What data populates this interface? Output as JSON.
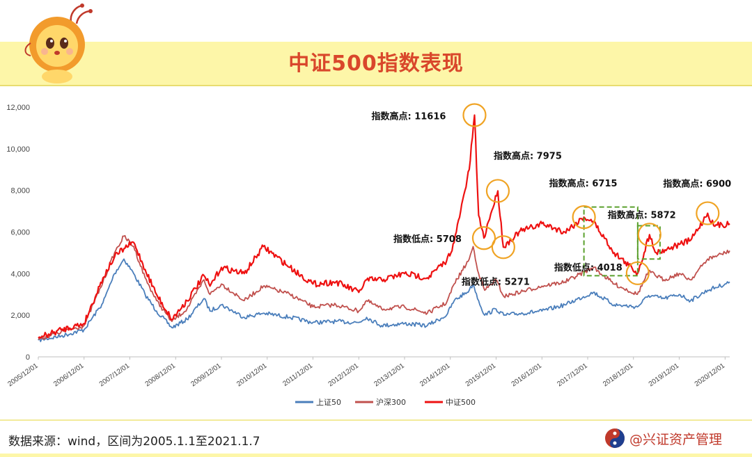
{
  "page": {
    "title": "中证500指数表现",
    "source_note": "数据来源：wind，区间为2005.1.1至2021.1.7",
    "brand": "@兴证资产管理"
  },
  "colors": {
    "header_band": "#fdf6a8",
    "title": "#d9472b",
    "sse50": "#4a7ebb",
    "csi300": "#c0504d",
    "csi500": "#ee1111",
    "annotation_circle": "#f0a323",
    "annotation_box": "#5aa02c"
  },
  "icons": [
    "lion-mascot-icon",
    "brand-logo-icon"
  ],
  "chart_data": {
    "type": "line",
    "title": "",
    "xlabel": "",
    "ylabel": "",
    "ylim": [
      0,
      12000
    ],
    "yticks": [
      "0",
      "2,000",
      "4,000",
      "6,000",
      "8,000",
      "10,000",
      "12,000"
    ],
    "ytick_values": [
      0,
      2000,
      4000,
      6000,
      8000,
      10000,
      12000
    ],
    "xticks": [
      "2005/12/01",
      "2006/12/01",
      "2007/12/01",
      "2008/12/01",
      "2009/12/01",
      "2010/12/01",
      "2011/12/01",
      "2012/12/01",
      "2013/12/01",
      "2014/12/01",
      "2015/12/01",
      "2016/12/01",
      "2017/12/01",
      "2018/12/01",
      "2019/12/01",
      "2020/12/01"
    ],
    "xlim": [
      "2005-12-01",
      "2021-01-07"
    ],
    "grid": false,
    "legend": "bottom-center",
    "series": [
      {
        "name": "上证50",
        "points": [
          [
            "2005-12-01",
            800
          ],
          [
            "2006-06-01",
            1000
          ],
          [
            "2006-12-01",
            1300
          ],
          [
            "2007-05-01",
            2600
          ],
          [
            "2007-08-01",
            4000
          ],
          [
            "2007-10-15",
            4700
          ],
          [
            "2008-01-01",
            4000
          ],
          [
            "2008-04-01",
            3000
          ],
          [
            "2008-07-01",
            2200
          ],
          [
            "2008-11-01",
            1400
          ],
          [
            "2009-03-01",
            1800
          ],
          [
            "2009-07-15",
            2800
          ],
          [
            "2009-09-01",
            2200
          ],
          [
            "2009-12-01",
            2500
          ],
          [
            "2010-06-01",
            1900
          ],
          [
            "2010-11-01",
            2100
          ],
          [
            "2011-06-01",
            1900
          ],
          [
            "2011-12-01",
            1650
          ],
          [
            "2012-06-01",
            1700
          ],
          [
            "2012-12-01",
            1650
          ],
          [
            "2013-02-01",
            1900
          ],
          [
            "2013-06-01",
            1500
          ],
          [
            "2013-12-01",
            1600
          ],
          [
            "2014-06-01",
            1500
          ],
          [
            "2014-11-01",
            2000
          ],
          [
            "2015-01-01",
            2700
          ],
          [
            "2015-05-01",
            3200
          ],
          [
            "2015-06-01",
            3500
          ],
          [
            "2015-07-15",
            2700
          ],
          [
            "2015-09-01",
            2000
          ],
          [
            "2015-12-01",
            2300
          ],
          [
            "2016-02-01",
            2000
          ],
          [
            "2016-12-01",
            2200
          ],
          [
            "2017-06-01",
            2500
          ],
          [
            "2018-01-15",
            3100
          ],
          [
            "2018-07-01",
            2500
          ],
          [
            "2019-01-01",
            2400
          ],
          [
            "2019-04-01",
            2950
          ],
          [
            "2019-08-01",
            2800
          ],
          [
            "2019-12-01",
            3000
          ],
          [
            "2020-03-01",
            2700
          ],
          [
            "2020-07-15",
            3200
          ],
          [
            "2020-12-01",
            3500
          ],
          [
            "2021-01-07",
            3600
          ]
        ]
      },
      {
        "name": "沪深300",
        "points": [
          [
            "2005-12-01",
            850
          ],
          [
            "2006-06-01",
            1200
          ],
          [
            "2006-12-01",
            1500
          ],
          [
            "2007-05-01",
            3600
          ],
          [
            "2007-08-01",
            5000
          ],
          [
            "2007-10-15",
            5800
          ],
          [
            "2008-01-01",
            5300
          ],
          [
            "2008-04-01",
            3800
          ],
          [
            "2008-07-01",
            2700
          ],
          [
            "2008-11-01",
            1700
          ],
          [
            "2009-03-01",
            2300
          ],
          [
            "2009-07-15",
            3700
          ],
          [
            "2009-09-01",
            3000
          ],
          [
            "2009-12-01",
            3500
          ],
          [
            "2010-06-01",
            2700
          ],
          [
            "2010-11-01",
            3400
          ],
          [
            "2011-06-01",
            3000
          ],
          [
            "2011-12-01",
            2400
          ],
          [
            "2012-06-01",
            2500
          ],
          [
            "2012-12-01",
            2200
          ],
          [
            "2013-02-01",
            2700
          ],
          [
            "2013-06-01",
            2300
          ],
          [
            "2013-12-01",
            2400
          ],
          [
            "2014-06-01",
            2100
          ],
          [
            "2014-11-01",
            2600
          ],
          [
            "2015-01-01",
            3500
          ],
          [
            "2015-05-01",
            4700
          ],
          [
            "2015-06-01",
            5300
          ],
          [
            "2015-07-15",
            4000
          ],
          [
            "2015-09-01",
            3200
          ],
          [
            "2015-12-01",
            3700
          ],
          [
            "2016-02-01",
            2900
          ],
          [
            "2016-12-01",
            3400
          ],
          [
            "2017-06-01",
            3600
          ],
          [
            "2018-01-15",
            4300
          ],
          [
            "2018-07-01",
            3500
          ],
          [
            "2019-01-01",
            3000
          ],
          [
            "2019-04-01",
            4100
          ],
          [
            "2019-08-01",
            3700
          ],
          [
            "2019-12-01",
            4000
          ],
          [
            "2020-03-01",
            3700
          ],
          [
            "2020-07-15",
            4700
          ],
          [
            "2020-12-01",
            5000
          ],
          [
            "2021-01-07",
            5100
          ]
        ]
      },
      {
        "name": "中证500",
        "points": [
          [
            "2005-12-01",
            900
          ],
          [
            "2006-06-01",
            1300
          ],
          [
            "2006-12-01",
            1600
          ],
          [
            "2007-05-01",
            3800
          ],
          [
            "2007-08-01",
            4800
          ],
          [
            "2007-10-15",
            5200
          ],
          [
            "2008-01-01",
            5500
          ],
          [
            "2008-04-01",
            4200
          ],
          [
            "2008-07-01",
            3000
          ],
          [
            "2008-11-01",
            1800
          ],
          [
            "2009-03-01",
            2700
          ],
          [
            "2009-07-15",
            3900
          ],
          [
            "2009-09-01",
            3400
          ],
          [
            "2009-12-01",
            4300
          ],
          [
            "2010-06-01",
            4000
          ],
          [
            "2010-11-01",
            5300
          ],
          [
            "2011-06-01",
            4300
          ],
          [
            "2011-12-01",
            3500
          ],
          [
            "2012-06-01",
            3600
          ],
          [
            "2012-12-01",
            3100
          ],
          [
            "2013-02-01",
            3700
          ],
          [
            "2013-06-01",
            3700
          ],
          [
            "2013-12-01",
            4000
          ],
          [
            "2014-06-01",
            3800
          ],
          [
            "2014-11-01",
            4600
          ],
          [
            "2015-01-01",
            5500
          ],
          [
            "2015-05-01",
            9000
          ],
          [
            "2015-06-12",
            11616
          ],
          [
            "2015-07-15",
            6800
          ],
          [
            "2015-08-26",
            5708
          ],
          [
            "2015-10-01",
            6500
          ],
          [
            "2015-12-15",
            7975
          ],
          [
            "2016-01-28",
            5271
          ],
          [
            "2016-06-01",
            6000
          ],
          [
            "2016-12-01",
            6400
          ],
          [
            "2017-06-01",
            6000
          ],
          [
            "2017-11-01",
            6715
          ],
          [
            "2018-01-15",
            6500
          ],
          [
            "2018-07-01",
            5000
          ],
          [
            "2019-01-04",
            4018
          ],
          [
            "2019-04-08",
            5872
          ],
          [
            "2019-06-01",
            5000
          ],
          [
            "2019-12-01",
            5400
          ],
          [
            "2020-03-01",
            5600
          ],
          [
            "2020-07-15",
            6900
          ],
          [
            "2020-09-01",
            6300
          ],
          [
            "2021-01-07",
            6400
          ]
        ]
      }
    ],
    "annotations": [
      {
        "label": "指数高点: 11616",
        "date": "2015-06-12",
        "value": 11616
      },
      {
        "label": "指数低点: 5708",
        "date": "2015-08-26",
        "value": 5708
      },
      {
        "label": "指数高点: 7975",
        "date": "2015-12-15",
        "value": 7975
      },
      {
        "label": "指数低点: 5271",
        "date": "2016-01-28",
        "value": 5271
      },
      {
        "label": "指数高点: 6715",
        "date": "2017-11-01",
        "value": 6715
      },
      {
        "label": "指数低点: 4018",
        "date": "2019-01-04",
        "value": 4018
      },
      {
        "label": "指数高点: 5872",
        "date": "2019-04-08",
        "value": 5872
      },
      {
        "label": "指数高点: 6900",
        "date": "2020-07-15",
        "value": 6900
      }
    ],
    "highlight_ranges": [
      {
        "from": "2017-11-01",
        "to": "2019-01-04",
        "ymin": 3900,
        "ymax": 7200
      },
      {
        "from": "2019-01-04",
        "to": "2019-07-01",
        "ymin": 4700,
        "ymax": 6300
      }
    ]
  }
}
